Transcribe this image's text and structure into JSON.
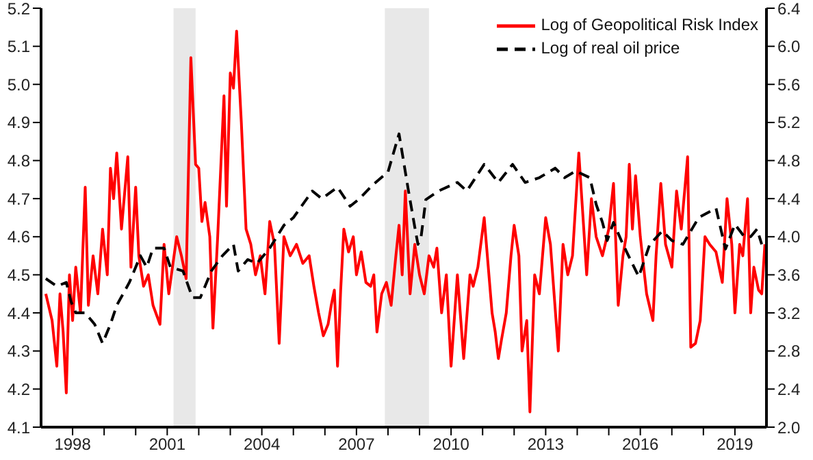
{
  "chart_data": {
    "type": "line",
    "legend": "top right",
    "marker": "none",
    "xlim": [
      1997,
      2020
    ],
    "ylim": [
      4.1,
      5.2
    ],
    "y2lim": [
      2.0,
      6.4
    ],
    "xticks": [
      1998,
      {
        "value": 1999,
        "label": null
      },
      {
        "value": 2000,
        "label": null
      },
      2001,
      {
        "value": 2002,
        "label": null
      },
      {
        "value": 2003,
        "label": null
      },
      2004,
      {
        "value": 2005,
        "label": null
      },
      {
        "value": 2006,
        "label": null
      },
      2007,
      {
        "value": 2008,
        "label": null
      },
      {
        "value": 2009,
        "label": null
      },
      2010,
      {
        "value": 2011,
        "label": null
      },
      {
        "value": 2012,
        "label": null
      },
      2013,
      {
        "value": 2014,
        "label": null
      },
      {
        "value": 2015,
        "label": null
      },
      2016,
      {
        "value": 2017,
        "label": null
      },
      {
        "value": 2018,
        "label": null
      },
      2019
    ],
    "yticks": [
      4.1,
      4.2,
      4.3,
      4.4,
      4.5,
      4.6,
      4.7,
      4.8,
      4.9,
      {
        "value": 5,
        "label": "5.0"
      },
      5.1,
      5.2
    ],
    "y2ticks": [
      {
        "value": 2,
        "label": "2.0"
      },
      2.4,
      2.8,
      3.2,
      3.6,
      {
        "value": 4,
        "label": "4.0"
      },
      4.4,
      4.8,
      5.2,
      5.6,
      {
        "value": 6,
        "label": "6.0"
      },
      6.4
    ],
    "bands": [
      {
        "axis": "x",
        "from": 2001.2,
        "to": 2001.9,
        "color": "#e8e8e8"
      },
      {
        "axis": "x",
        "from": 2007.9,
        "to": 2009.3,
        "color": "#e8e8e8"
      }
    ],
    "series": [
      {
        "name": "Log of Geopolitical Risk Index",
        "color": "#ff0000",
        "line_style": "solid",
        "x": [
          1997.15,
          1997.35,
          1997.5,
          1997.6,
          1997.7,
          1997.8,
          1997.9,
          1998.0,
          1998.1,
          1998.25,
          1998.4,
          1998.5,
          1998.65,
          1998.8,
          1998.95,
          1999.1,
          1999.2,
          1999.3,
          1999.4,
          1999.55,
          1999.75,
          1999.85,
          2000.0,
          2000.1,
          2000.25,
          2000.4,
          2000.55,
          2000.77,
          2000.9,
          2001.05,
          2001.3,
          2001.45,
          2001.6,
          2001.75,
          2001.9,
          2002.0,
          2002.1,
          2002.2,
          2002.35,
          2002.45,
          2002.6,
          2002.8,
          2002.88,
          2003.0,
          2003.1,
          2003.2,
          2003.35,
          2003.5,
          2003.65,
          2003.8,
          2003.95,
          2004.1,
          2004.25,
          2004.4,
          2004.55,
          2004.7,
          2004.9,
          2005.1,
          2005.3,
          2005.5,
          2005.65,
          2005.8,
          2005.95,
          2006.1,
          2006.2,
          2006.3,
          2006.4,
          2006.5,
          2006.6,
          2006.75,
          2006.9,
          2007.0,
          2007.15,
          2007.3,
          2007.45,
          2007.55,
          2007.65,
          2007.8,
          2007.95,
          2008.1,
          2008.25,
          2008.35,
          2008.45,
          2008.55,
          2008.7,
          2008.85,
          2009.0,
          2009.15,
          2009.3,
          2009.45,
          2009.55,
          2009.7,
          2009.85,
          2010.0,
          2010.2,
          2010.4,
          2010.6,
          2010.7,
          2010.85,
          2011.05,
          2011.3,
          2011.4,
          2011.5,
          2011.6,
          2011.75,
          2011.9,
          2012.0,
          2012.15,
          2012.25,
          2012.4,
          2012.5,
          2012.65,
          2012.8,
          2013.0,
          2013.15,
          2013.4,
          2013.55,
          2013.7,
          2013.85,
          2014.05,
          2014.2,
          2014.3,
          2014.45,
          2014.6,
          2014.8,
          2015.0,
          2015.15,
          2015.3,
          2015.45,
          2015.55,
          2015.65,
          2015.75,
          2015.85,
          2016.0,
          2016.2,
          2016.4,
          2016.5,
          2016.65,
          2016.8,
          2017.0,
          2017.15,
          2017.3,
          2017.5,
          2017.6,
          2017.75,
          2017.9,
          2018.05,
          2018.2,
          2018.4,
          2018.6,
          2018.75,
          2018.9,
          2019.0,
          2019.15,
          2019.25,
          2019.4,
          2019.5,
          2019.6,
          2019.75,
          2019.85,
          2019.95
        ],
        "values": [
          4.45,
          4.38,
          4.26,
          4.45,
          4.35,
          4.19,
          4.5,
          4.38,
          4.52,
          4.4,
          4.73,
          4.42,
          4.55,
          4.45,
          4.62,
          4.5,
          4.78,
          4.7,
          4.82,
          4.62,
          4.81,
          4.52,
          4.73,
          4.55,
          4.47,
          4.5,
          4.42,
          4.37,
          4.58,
          4.45,
          4.6,
          4.55,
          4.49,
          5.07,
          4.79,
          4.78,
          4.64,
          4.69,
          4.6,
          4.36,
          4.6,
          4.97,
          4.68,
          5.03,
          4.99,
          5.14,
          4.9,
          4.62,
          4.58,
          4.5,
          4.55,
          4.45,
          4.64,
          4.58,
          4.32,
          4.6,
          4.55,
          4.58,
          4.53,
          4.55,
          4.47,
          4.4,
          4.34,
          4.37,
          4.42,
          4.46,
          4.26,
          4.46,
          4.62,
          4.56,
          4.6,
          4.5,
          4.56,
          4.48,
          4.47,
          4.5,
          4.35,
          4.45,
          4.48,
          4.42,
          4.55,
          4.63,
          4.5,
          4.72,
          4.45,
          4.58,
          4.5,
          4.45,
          4.55,
          4.52,
          4.57,
          4.4,
          4.5,
          4.26,
          4.5,
          4.28,
          4.5,
          4.47,
          4.52,
          4.65,
          4.4,
          4.35,
          4.28,
          4.33,
          4.4,
          4.55,
          4.63,
          4.55,
          4.3,
          4.38,
          4.14,
          4.5,
          4.45,
          4.65,
          4.58,
          4.3,
          4.58,
          4.5,
          4.55,
          4.82,
          4.63,
          4.5,
          4.7,
          4.6,
          4.55,
          4.62,
          4.74,
          4.42,
          4.55,
          4.6,
          4.79,
          4.62,
          4.76,
          4.6,
          4.45,
          4.38,
          4.55,
          4.74,
          4.58,
          4.52,
          4.72,
          4.62,
          4.81,
          4.31,
          4.32,
          4.38,
          4.6,
          4.58,
          4.56,
          4.48,
          4.7,
          4.58,
          4.4,
          4.58,
          4.55,
          4.7,
          4.4,
          4.52,
          4.46,
          4.45,
          4.58
        ]
      },
      {
        "name": "Log of real oil price",
        "color": "#000000",
        "line_style": "dashed",
        "axis": "y2",
        "x": [
          1997.15,
          1997.5,
          1997.8,
          1997.95,
          1998.1,
          1998.4,
          1998.7,
          1998.95,
          1999.2,
          1999.4,
          1999.8,
          2000.15,
          2000.35,
          2000.55,
          2000.9,
          2001.1,
          2001.5,
          2001.8,
          2002.05,
          2002.4,
          2002.75,
          2003.1,
          2003.25,
          2003.55,
          2003.85,
          2004.25,
          2004.7,
          2005.0,
          2005.6,
          2005.9,
          2006.4,
          2006.8,
          2007.1,
          2007.5,
          2008.0,
          2008.35,
          2008.65,
          2008.85,
          2008.95,
          2009.05,
          2009.2,
          2009.6,
          2010.2,
          2010.5,
          2011.05,
          2011.5,
          2011.95,
          2012.35,
          2012.8,
          2013.3,
          2013.6,
          2013.95,
          2014.4,
          2014.6,
          2014.8,
          2014.95,
          2015.15,
          2015.45,
          2015.95,
          2016.3,
          2016.7,
          2017.0,
          2017.35,
          2017.85,
          2018.4,
          2018.7,
          2019.0,
          2019.3,
          2019.5,
          2019.7,
          2019.85
        ],
        "values": [
          3.56,
          3.48,
          3.52,
          3.32,
          3.2,
          3.2,
          3.08,
          2.88,
          3.08,
          3.28,
          3.52,
          3.8,
          3.68,
          3.88,
          3.88,
          3.68,
          3.64,
          3.36,
          3.36,
          3.64,
          3.8,
          3.92,
          3.64,
          3.76,
          3.72,
          3.88,
          4.12,
          4.2,
          4.48,
          4.4,
          4.52,
          4.32,
          4.4,
          4.54,
          4.68,
          5.08,
          4.48,
          4.1,
          3.92,
          4.0,
          4.39,
          4.48,
          4.57,
          4.48,
          4.76,
          4.57,
          4.76,
          4.57,
          4.62,
          4.72,
          4.62,
          4.69,
          4.62,
          4.34,
          4.15,
          3.96,
          4.15,
          3.92,
          3.58,
          3.92,
          4.06,
          3.96,
          3.92,
          4.2,
          4.3,
          3.87,
          4.13,
          4.0,
          4.0,
          4.08,
          3.92
        ]
      }
    ]
  }
}
